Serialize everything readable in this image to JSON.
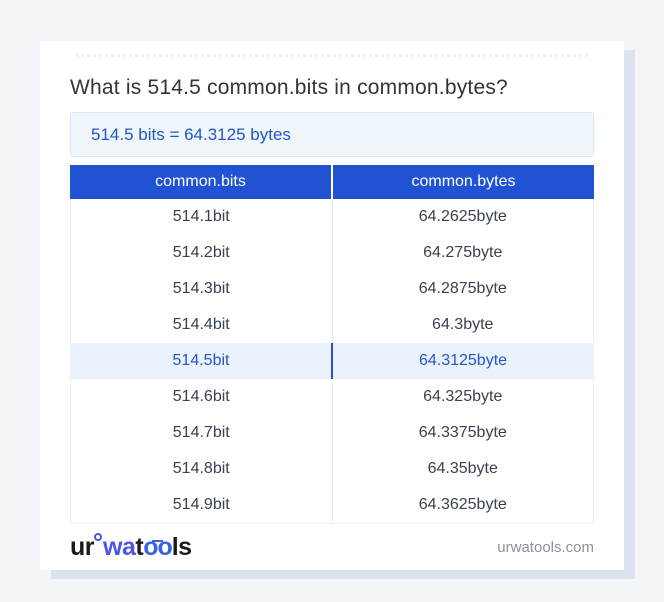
{
  "title": "What is 514.5 common.bits in common.bytes?",
  "result": "514.5 bits = 64.3125 bytes",
  "table": {
    "headers": [
      "common.bits",
      "common.bytes"
    ],
    "highlight_index": 4,
    "rows": [
      {
        "bits": "514.1bit",
        "bytes": "64.2625byte"
      },
      {
        "bits": "514.2bit",
        "bytes": "64.275byte"
      },
      {
        "bits": "514.3bit",
        "bytes": "64.2875byte"
      },
      {
        "bits": "514.4bit",
        "bytes": "64.3byte"
      },
      {
        "bits": "514.5bit",
        "bytes": "64.3125byte"
      },
      {
        "bits": "514.6bit",
        "bytes": "64.325byte"
      },
      {
        "bits": "514.7bit",
        "bytes": "64.3375byte"
      },
      {
        "bits": "514.8bit",
        "bytes": "64.35byte"
      },
      {
        "bits": "514.9bit",
        "bytes": "64.3625byte"
      }
    ]
  },
  "footer": {
    "logo_parts": {
      "p1": "ur",
      "p2": "wa",
      "p3": "t",
      "p4": "oo",
      "p5": "ls"
    },
    "domain": "urwatools.com"
  },
  "colors": {
    "page_bg": "#f3f5f9",
    "card_bg": "#ffffff",
    "brand_blue": "#2152d4",
    "accent_text_blue": "#2456c4",
    "result_box_bg": "#eff6fc",
    "result_box_border": "#dbe6f5",
    "highlight_row_bg": "#e9f2fd",
    "header_text": "#ffffff",
    "row_text": "#3a4150",
    "title_text": "#30353d",
    "muted_text": "#8b929e",
    "logo_indigo": "#4a56e8",
    "logo_blue": "#3b62e6",
    "card_shadow": "#dde3ee"
  }
}
